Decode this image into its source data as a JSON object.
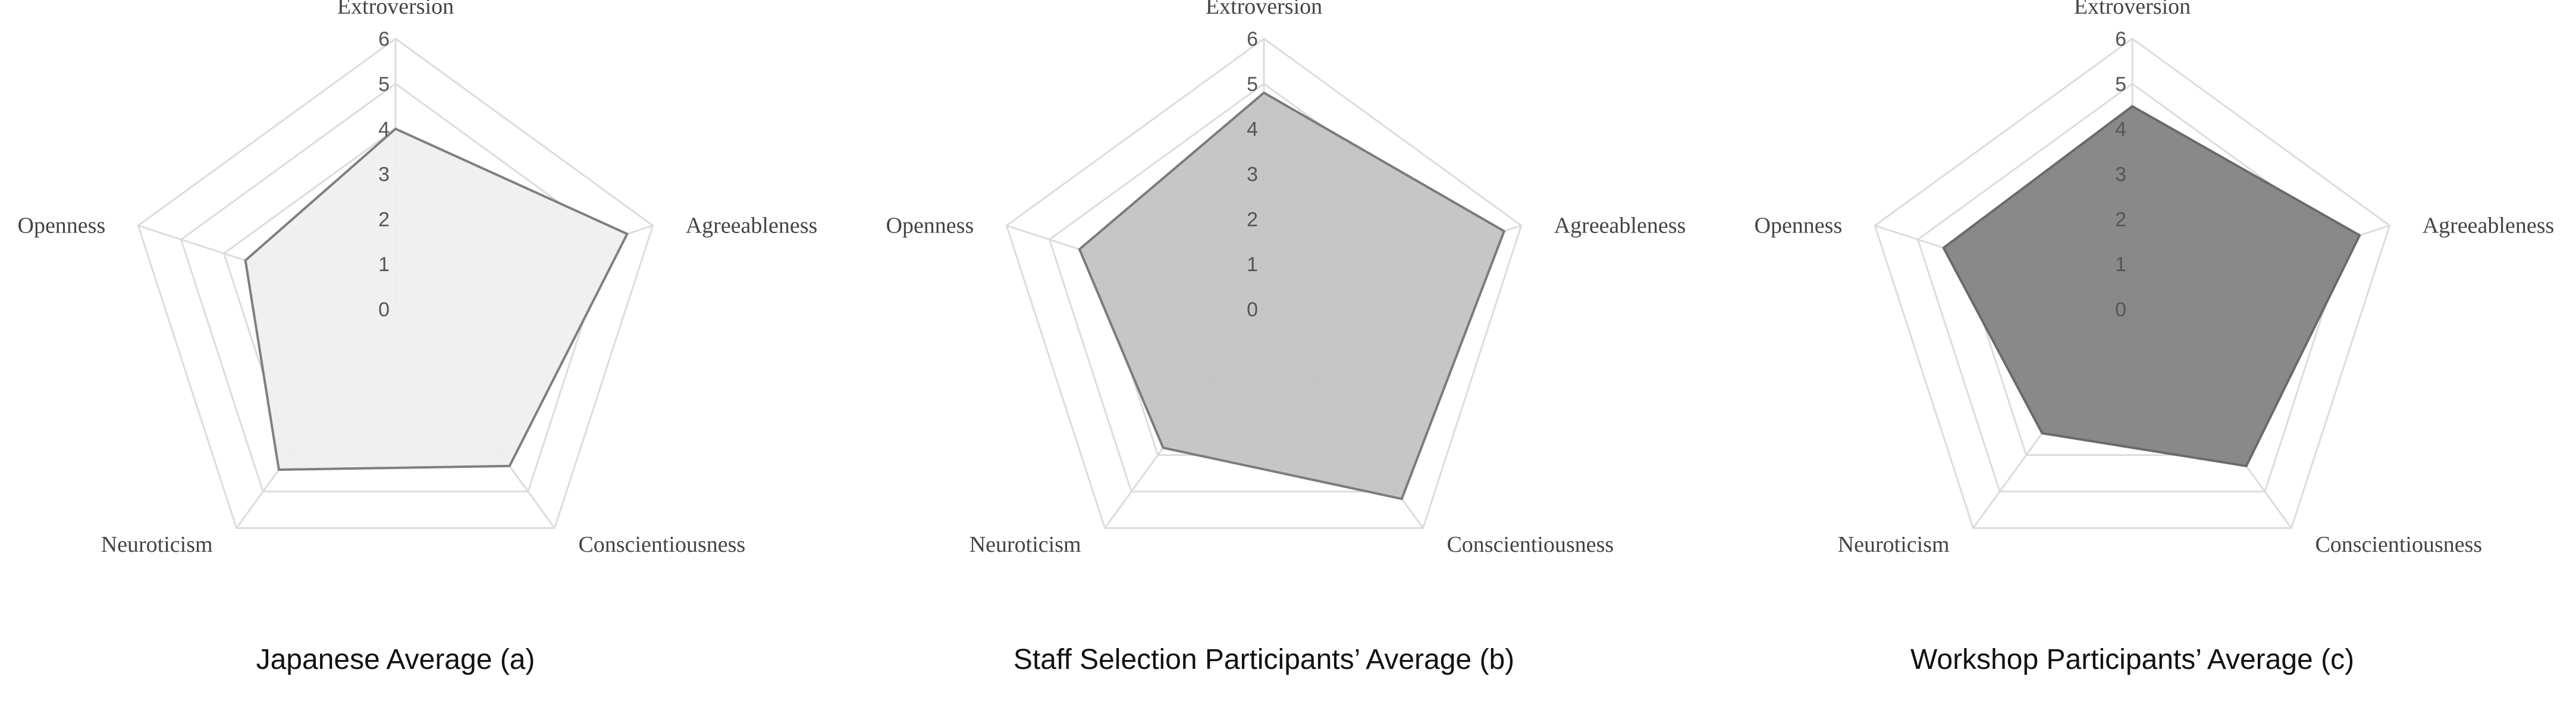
{
  "chart_data": [
    {
      "type": "radar",
      "caption": "Japanese Average (a)",
      "axes": [
        "Extroversion",
        "Agreeableness",
        "Conscientiousness",
        "Neuroticism",
        "Openness"
      ],
      "ticks": [
        "0",
        "1",
        "2",
        "3",
        "4",
        "5",
        "6"
      ],
      "range": [
        0,
        6
      ],
      "series": [
        {
          "values": [
            4.0,
            5.4,
            4.3,
            4.4,
            3.5
          ]
        }
      ],
      "colors": {
        "fill": "#efefef",
        "stroke": "#7f7f7f"
      },
      "grid": true,
      "legend": "none"
    },
    {
      "type": "radar",
      "caption": "Staff Selection Participants’ Average (b)",
      "axes": [
        "Extroversion",
        "Agreeableness",
        "Conscientiousness",
        "Neuroticism",
        "Openness"
      ],
      "ticks": [
        "0",
        "1",
        "2",
        "3",
        "4",
        "5",
        "6"
      ],
      "range": [
        0,
        6
      ],
      "series": [
        {
          "values": [
            4.8,
            5.6,
            5.2,
            3.8,
            4.3
          ]
        }
      ],
      "colors": {
        "fill": "#c1c1c1",
        "stroke": "#7b7b7b"
      },
      "grid": true,
      "legend": "none"
    },
    {
      "type": "radar",
      "caption": "Workshop Participants’ Average (c)",
      "axes": [
        "Extroversion",
        "Agreeableness",
        "Conscientiousness",
        "Neuroticism",
        "Openness"
      ],
      "ticks": [
        "0",
        "1",
        "2",
        "3",
        "4",
        "5",
        "6"
      ],
      "range": [
        0,
        6
      ],
      "series": [
        {
          "values": [
            4.5,
            5.3,
            4.3,
            3.4,
            4.4
          ]
        }
      ],
      "colors": {
        "fill": "#7f7f7f",
        "stroke": "#6a6a6a"
      },
      "grid": true,
      "legend": "none"
    }
  ]
}
